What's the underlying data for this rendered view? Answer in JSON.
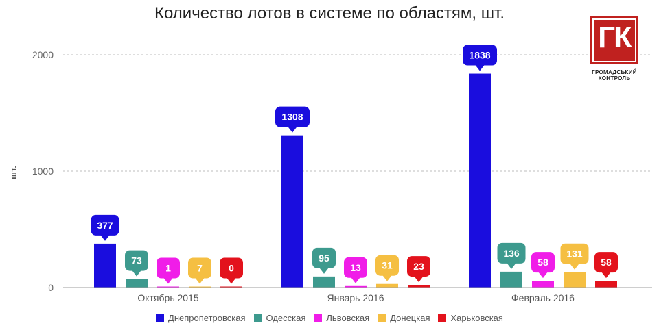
{
  "chart_data": {
    "type": "bar",
    "title": "Количество лотов в системе по областям, шт.",
    "ylabel": "шт.",
    "xlabel": "",
    "ylim": [
      0,
      2200
    ],
    "yticks": [
      0,
      1000,
      2000
    ],
    "grid": true,
    "legend_position": "bottom",
    "categories": [
      "Октябрь 2015",
      "Январь 2016",
      "Февраль 2016"
    ],
    "series": [
      {
        "name": "Днепропетровская",
        "color": "#1a0dde",
        "values": [
          377,
          1308,
          1838
        ]
      },
      {
        "name": "Одесская",
        "color": "#3d9a8e",
        "values": [
          73,
          95,
          136
        ]
      },
      {
        "name": "Львовская",
        "color": "#f01de8",
        "values": [
          1,
          13,
          58
        ]
      },
      {
        "name": "Донецкая",
        "color": "#f5bf42",
        "values": [
          7,
          31,
          131
        ]
      },
      {
        "name": "Харьковская",
        "color": "#e3121c",
        "values": [
          0,
          23,
          58
        ]
      }
    ]
  },
  "logo": {
    "mark": "ГК",
    "line1": "ГРОМАДСЬКИЙ",
    "line2": "КОНТРОЛЬ"
  }
}
